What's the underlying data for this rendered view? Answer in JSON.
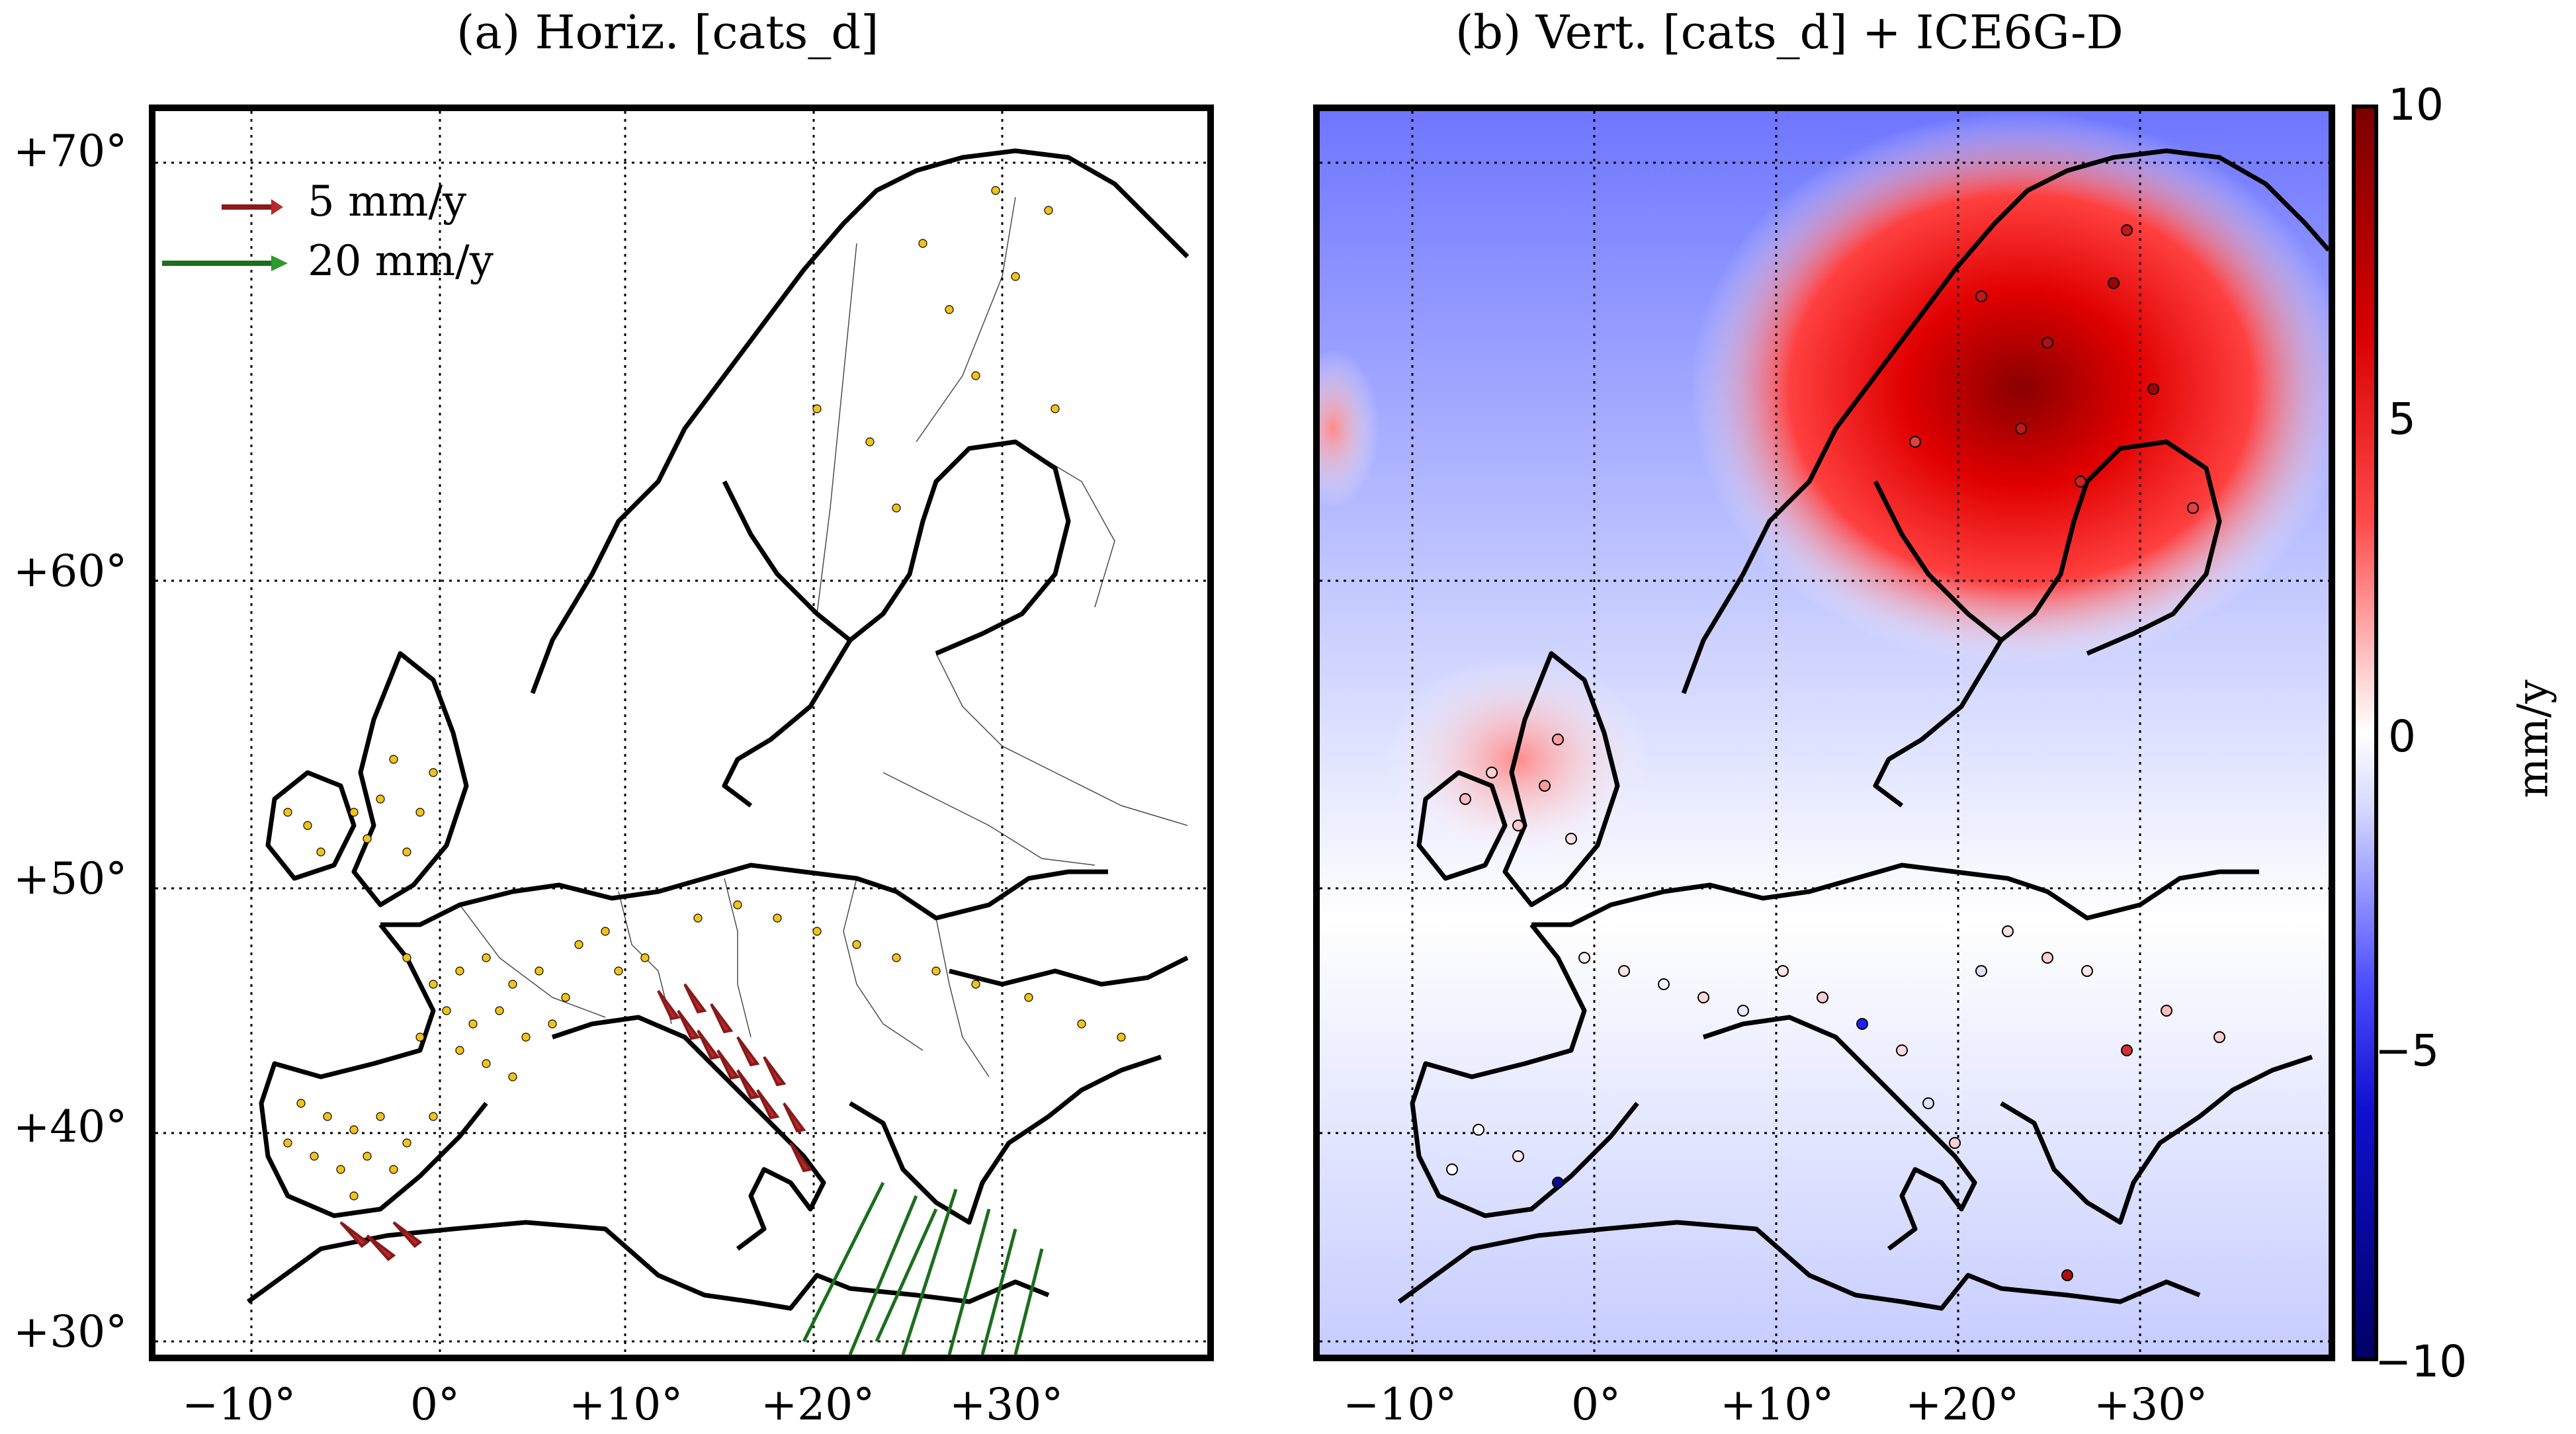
{
  "panel_a": {
    "title": "(a) Horiz. [cats_d]",
    "legend": [
      {
        "label": "5 mm/y",
        "color": "#b52a2a"
      },
      {
        "label": "20 mm/y",
        "color": "#2e9a2e"
      }
    ]
  },
  "panel_b": {
    "title": "(b) Vert. [cats_d] + ICE6G-D",
    "colorbar": {
      "label": "mm/y",
      "ticks": [
        "10",
        "5",
        "0",
        "−5",
        "−10"
      ],
      "range": [
        -10,
        10
      ]
    }
  },
  "axes": {
    "lon_ticks": [
      "−10°",
      "0°",
      "+10°",
      "+20°",
      "+30°"
    ],
    "lat_ticks": [
      "+70°",
      "+60°",
      "+50°",
      "+40°",
      "+30°"
    ]
  },
  "colors": {
    "site_marker": "#f2c21a",
    "arrow_red": "#b52a2a",
    "arrow_green": "#2e9a2e",
    "uplift": "#d00000",
    "subsidence": "#2a2aff"
  }
}
